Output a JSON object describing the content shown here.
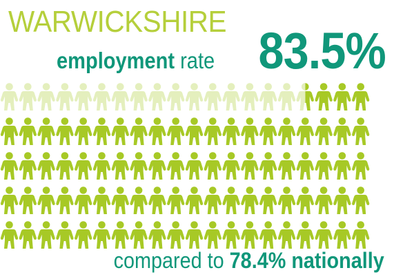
{
  "header": {
    "region": "WARWICKSHIRE",
    "subtitle_bold": "employment",
    "subtitle_light": "rate",
    "rate": "83.5%"
  },
  "footer": {
    "prefix": "compared to",
    "national": "78.4% nationally"
  },
  "people_chart": {
    "total_people": 100,
    "highlighted_fraction": 0.835,
    "icon": "person-icon",
    "grid_rows": 5,
    "grid_columns": 20
  },
  "colors": {
    "title": "#b5cf3b",
    "accent_dark": "#10977a",
    "person_filled": "#a7c926",
    "person_faded": "#e4efbd"
  }
}
